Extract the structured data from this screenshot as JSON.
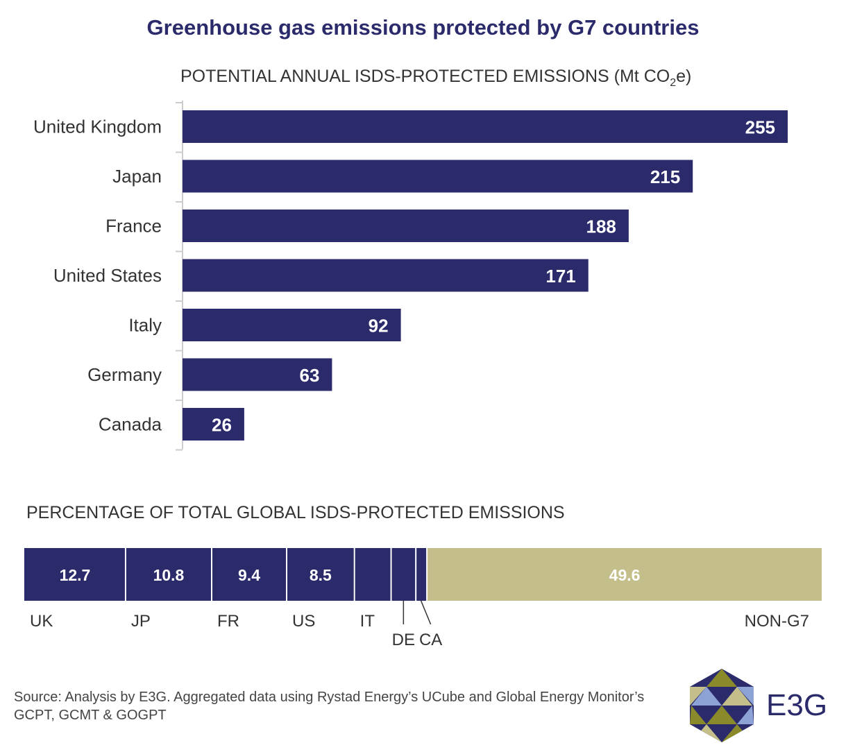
{
  "title": "Greenhouse gas emissions protected by G7 countries",
  "subtitle_main": "POTENTIAL ANNUAL ISDS-PROTECTED EMISSIONS (Mt CO",
  "subtitle_sub": "2",
  "subtitle_end": "e)",
  "subtitle2": "PERCENTAGE OF TOTAL GLOBAL ISDS-PROTECTED EMISSIONS",
  "colors": {
    "bar": "#2b2a6b",
    "other": "#c4bf8a",
    "text": "#333333"
  },
  "chart_data": [
    {
      "type": "bar",
      "orientation": "horizontal",
      "title": "POTENTIAL ANNUAL ISDS-PROTECTED EMISSIONS (Mt CO2e)",
      "categories": [
        "United Kingdom",
        "Japan",
        "France",
        "United States",
        "Italy",
        "Germany",
        "Canada"
      ],
      "values": [
        255,
        215,
        188,
        171,
        92,
        63,
        26
      ],
      "xlim": [
        0,
        255
      ]
    },
    {
      "type": "bar",
      "orientation": "stacked-horizontal",
      "title": "PERCENTAGE OF TOTAL GLOBAL ISDS-PROTECTED EMISSIONS",
      "segments": [
        {
          "label": "UK",
          "value": 12.7,
          "value_label": "12.7"
        },
        {
          "label": "JP",
          "value": 10.8,
          "value_label": "10.8"
        },
        {
          "label": "FR",
          "value": 9.4,
          "value_label": "9.4"
        },
        {
          "label": "US",
          "value": 8.5,
          "value_label": "8.5"
        },
        {
          "label": "IT",
          "value": 4.6,
          "value_label": ""
        },
        {
          "label": "DE",
          "value": 3.1,
          "value_label": ""
        },
        {
          "label": "CA",
          "value": 1.3,
          "value_label": ""
        },
        {
          "label": "NON-G7",
          "value": 49.6,
          "value_label": "49.6"
        }
      ]
    }
  ],
  "source": "Source: Analysis by E3G. Aggregated data using Rystad Energy’s UCube and Global Energy Monitor’s GCPT, GCMT & GOGPT",
  "logo_text": "E3G"
}
